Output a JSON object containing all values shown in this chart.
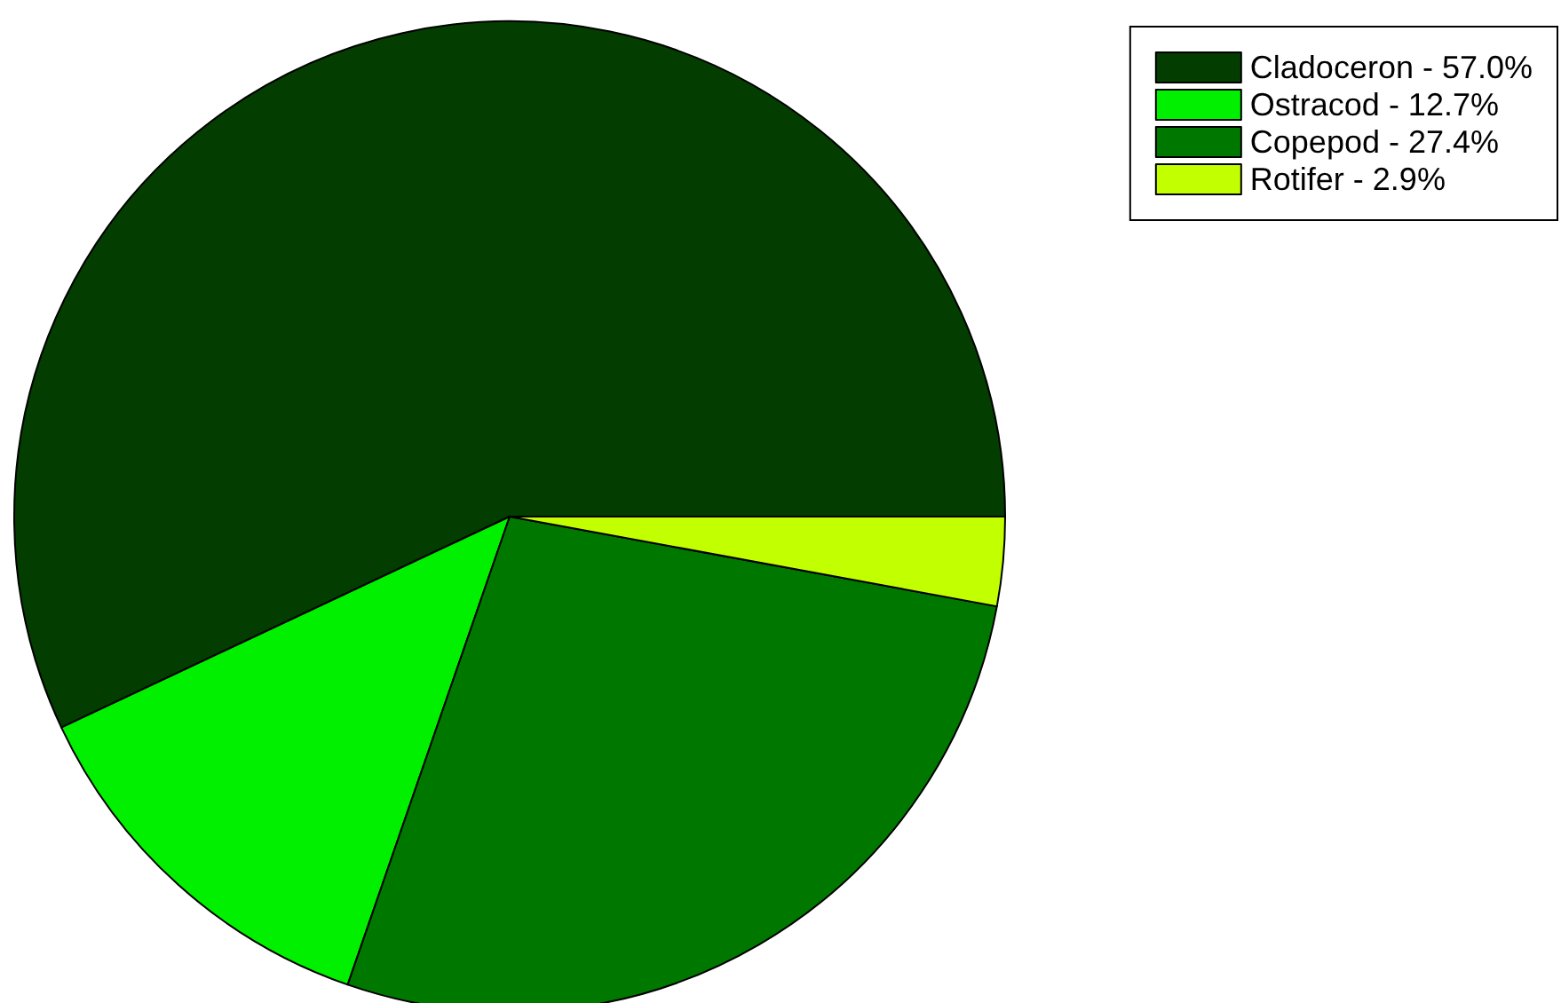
{
  "chart_data": {
    "type": "pie",
    "categories": [
      "Cladoceron - 57.0%",
      "Ostracod - 12.7%",
      "Copepod - 27.4%",
      "Rotifer - 2.9%"
    ],
    "values": [
      57.0,
      12.7,
      27.4,
      2.9
    ],
    "colors": [
      "#033d00",
      "#00f000",
      "#007800",
      "#c2ff00"
    ],
    "legend": "top right"
  }
}
